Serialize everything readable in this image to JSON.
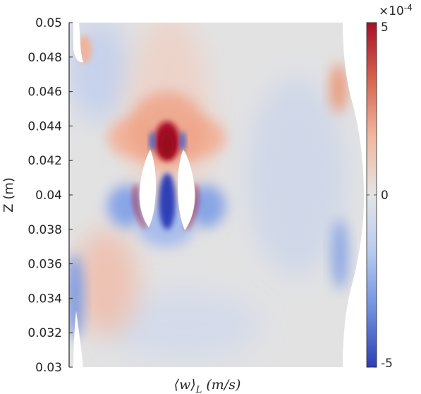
{
  "chart_data": {
    "type": "heatmap",
    "ylabel": "Z (m)",
    "xlabel": "⟨w⟩_L (m/s)",
    "ylim": [
      0.03,
      0.05
    ],
    "y_ticks": [
      "0.03",
      "0.032",
      "0.034",
      "0.036",
      "0.038",
      "0.04",
      "0.042",
      "0.044",
      "0.046",
      "0.048",
      "0.05"
    ],
    "colorbar": {
      "range": [
        -5,
        5
      ],
      "ticks": [
        "-5",
        "0",
        "5"
      ],
      "exponent": "×10",
      "exponent_power": "-4",
      "colormap": [
        "#2d3fb6",
        "#6e8fe0",
        "#b7cbef",
        "#e4e4e4",
        "#f2b8a0",
        "#d96450",
        "#a90f28"
      ]
    },
    "features": [
      {
        "name": "positive-core-above-gap",
        "z": 0.0433,
        "value": 5
      },
      {
        "name": "negative-core-in-gap",
        "z": 0.0395,
        "value": -5
      },
      {
        "name": "positive-streak-left-obstacle",
        "z": 0.0395,
        "value": 4
      },
      {
        "name": "positive-streak-right-obstacle",
        "z": 0.0395,
        "value": 4
      },
      {
        "name": "negative-lobe-left",
        "z": 0.0392,
        "value": -2
      },
      {
        "name": "negative-lobe-right",
        "z": 0.0392,
        "value": -2
      },
      {
        "name": "positive-lobe-upper-left",
        "z": 0.0437,
        "value": 2
      },
      {
        "name": "positive-lobe-upper-right",
        "z": 0.0437,
        "value": 2
      },
      {
        "name": "positive-patch-lower-left",
        "z": 0.0345,
        "value": 1.5
      },
      {
        "name": "positive-patch-right-edge",
        "z": 0.0466,
        "value": 2
      },
      {
        "name": "negative-patch-right-edge",
        "z": 0.0375,
        "value": -2
      },
      {
        "name": "negative-patch-left-edge",
        "z": 0.0342,
        "value": -2.5
      }
    ]
  }
}
